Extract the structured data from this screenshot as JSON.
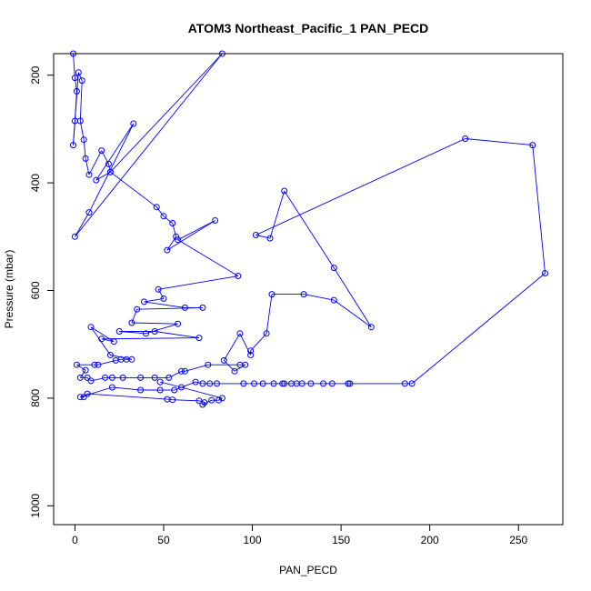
{
  "chart_data": {
    "type": "line",
    "title": "ATOM3 Northeast_Pacific_1 PAN_PECD",
    "xlabel": "PAN_PECD",
    "ylabel": "Pressure (mbar)",
    "xlim": [
      -12,
      275
    ],
    "ylim": [
      1035,
      160
    ],
    "y_reversed": true,
    "x_ticks": [
      "0",
      "50",
      "100",
      "150",
      "200",
      "250"
    ],
    "x_tick_values": [
      0,
      50,
      100,
      150,
      200,
      250
    ],
    "y_ticks": [
      "200",
      "400",
      "600",
      "800",
      "1000"
    ],
    "y_tick_values": [
      200,
      400,
      600,
      800,
      1000
    ],
    "colors": {
      "series": "#0000ff",
      "axis": "#000000"
    },
    "marker": "open-circle",
    "grid": false,
    "series": [
      {
        "points": [
          [
            -1,
            160
          ],
          [
            0,
            205
          ],
          [
            1,
            230
          ],
          [
            0,
            285
          ],
          [
            -1,
            330
          ],
          [
            2,
            195
          ],
          [
            4,
            210
          ],
          [
            3,
            285
          ],
          [
            5,
            320
          ],
          [
            6,
            355
          ],
          [
            8,
            385
          ],
          [
            15,
            340
          ],
          [
            19,
            365
          ],
          [
            20,
            380
          ],
          [
            12,
            395
          ],
          [
            33,
            290
          ],
          [
            8,
            455
          ],
          [
            0,
            500
          ],
          [
            83,
            160
          ],
          [
            20,
            380
          ],
          [
            46,
            445
          ],
          [
            50,
            462
          ],
          [
            55,
            475
          ],
          [
            57,
            500
          ],
          [
            52,
            525
          ],
          [
            79,
            470
          ],
          [
            58,
            506
          ],
          [
            92,
            573
          ],
          [
            47,
            598
          ],
          [
            50,
            615
          ],
          [
            39,
            621
          ],
          [
            62,
            632
          ],
          [
            72,
            632
          ],
          [
            35,
            635
          ],
          [
            32,
            660
          ],
          [
            58,
            662
          ],
          [
            40,
            680
          ],
          [
            25,
            676
          ],
          [
            45,
            676
          ],
          [
            70,
            688
          ],
          [
            15,
            690
          ],
          [
            22,
            695
          ],
          [
            9,
            668
          ],
          [
            20,
            720
          ],
          [
            32,
            728
          ],
          [
            29,
            728
          ],
          [
            26,
            728
          ],
          [
            23,
            730
          ],
          [
            13,
            738
          ],
          [
            11,
            738
          ],
          [
            1,
            738
          ],
          [
            6,
            748
          ],
          [
            3,
            762
          ],
          [
            7,
            762
          ],
          [
            9,
            768
          ],
          [
            17,
            762
          ],
          [
            21,
            762
          ],
          [
            27,
            762
          ],
          [
            37,
            762
          ],
          [
            45,
            762
          ],
          [
            53,
            762
          ],
          [
            60,
            750
          ],
          [
            62,
            750
          ],
          [
            75,
            738
          ],
          [
            93,
            738
          ],
          [
            96,
            738
          ],
          [
            90,
            750
          ],
          [
            84,
            730
          ],
          [
            93,
            680
          ],
          [
            99,
            720
          ],
          [
            99,
            712
          ],
          [
            108,
            680
          ],
          [
            111,
            607
          ],
          [
            129,
            607
          ],
          [
            146,
            618
          ],
          [
            167,
            668
          ],
          [
            146,
            558
          ],
          [
            118,
            415
          ],
          [
            110,
            503
          ],
          [
            102,
            497
          ],
          [
            220,
            318
          ],
          [
            258,
            330
          ],
          [
            265,
            568
          ],
          [
            190,
            773
          ],
          [
            186,
            773
          ],
          [
            155,
            773
          ],
          [
            154,
            773
          ],
          [
            145,
            773
          ],
          [
            140,
            773
          ],
          [
            133,
            773
          ],
          [
            128,
            773
          ],
          [
            125,
            773
          ],
          [
            122,
            773
          ],
          [
            118,
            773
          ],
          [
            117,
            773
          ],
          [
            112,
            773
          ],
          [
            106,
            773
          ],
          [
            101,
            773
          ],
          [
            95,
            773
          ],
          [
            80,
            773
          ],
          [
            76,
            773
          ],
          [
            72,
            773
          ],
          [
            68,
            770
          ],
          [
            56,
            785
          ],
          [
            48,
            785
          ],
          [
            37,
            785
          ],
          [
            21,
            780
          ],
          [
            3,
            798
          ],
          [
            5,
            798
          ],
          [
            7,
            792
          ],
          [
            52,
            802
          ],
          [
            55,
            803
          ],
          [
            70,
            805
          ],
          [
            73,
            808
          ],
          [
            72,
            812
          ],
          [
            77,
            804
          ],
          [
            81,
            804
          ],
          [
            83,
            800
          ],
          [
            60,
            780
          ],
          [
            48,
            770
          ]
        ]
      }
    ]
  }
}
